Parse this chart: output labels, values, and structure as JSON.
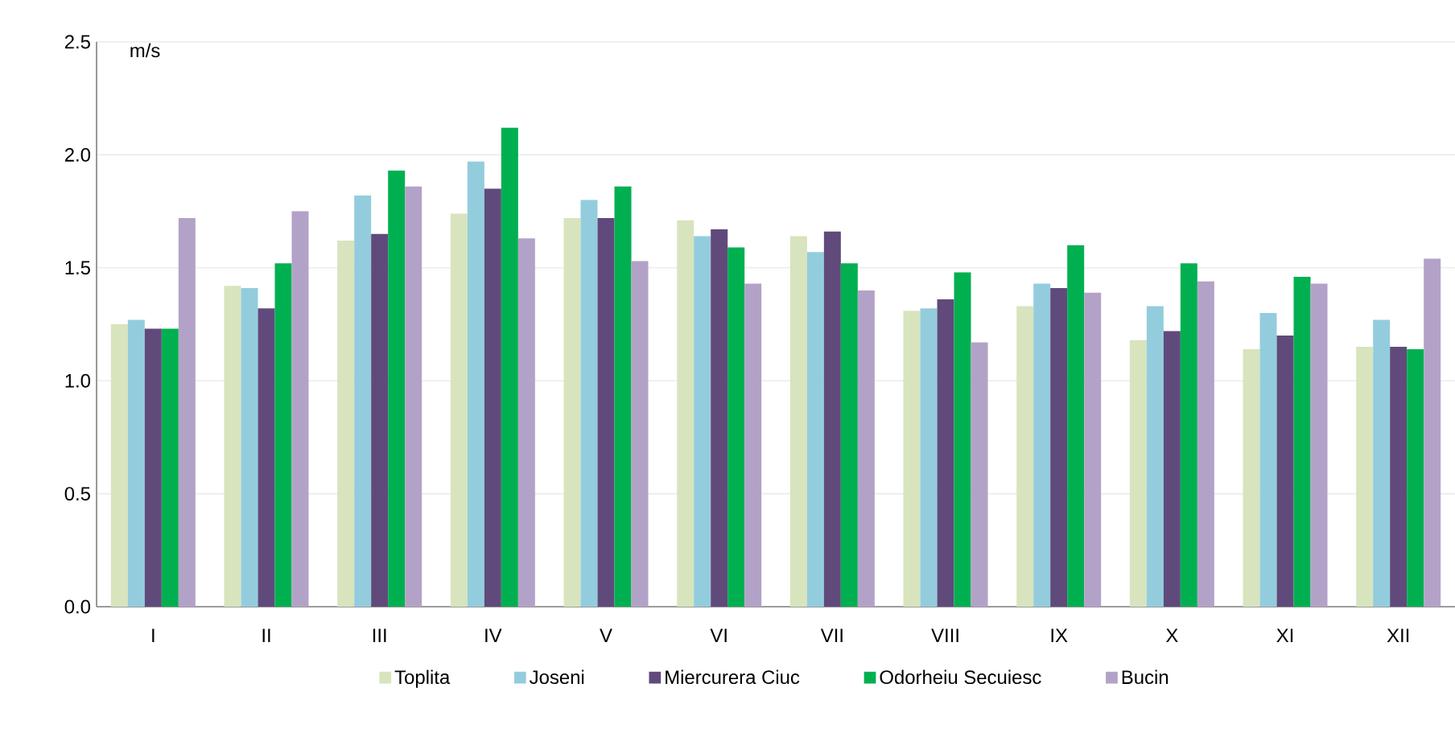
{
  "chart_data": {
    "type": "bar",
    "ylabel": "m/s",
    "categories": [
      "I",
      "II",
      "III",
      "IV",
      "V",
      "VI",
      "VII",
      "VIII",
      "IX",
      "X",
      "XI",
      "XII"
    ],
    "series": [
      {
        "name": "Toplita",
        "color": "#d7e4bd",
        "values": [
          1.25,
          1.42,
          1.62,
          1.74,
          1.72,
          1.71,
          1.64,
          1.31,
          1.33,
          1.18,
          1.14,
          1.15
        ]
      },
      {
        "name": "Joseni",
        "color": "#93cddd",
        "values": [
          1.27,
          1.41,
          1.82,
          1.97,
          1.8,
          1.64,
          1.57,
          1.32,
          1.43,
          1.33,
          1.3,
          1.27
        ]
      },
      {
        "name": "Miercurera Ciuc",
        "color": "#604a7b",
        "values": [
          1.23,
          1.32,
          1.65,
          1.85,
          1.72,
          1.67,
          1.66,
          1.36,
          1.41,
          1.22,
          1.2,
          1.15
        ]
      },
      {
        "name": "Odorheiu Secuiesc",
        "color": "#00b050",
        "values": [
          1.23,
          1.52,
          1.93,
          2.12,
          1.86,
          1.59,
          1.52,
          1.48,
          1.6,
          1.52,
          1.46,
          1.14
        ]
      },
      {
        "name": "Bucin",
        "color": "#b3a2c7",
        "values": [
          1.72,
          1.75,
          1.86,
          1.63,
          1.53,
          1.43,
          1.4,
          1.17,
          1.39,
          1.44,
          1.43,
          1.54
        ]
      }
    ],
    "ylim": [
      0,
      2.5
    ],
    "yticks": [
      {
        "value": 0,
        "label": "0.0"
      },
      {
        "value": 0.5,
        "label": "0.5"
      },
      {
        "value": 1,
        "label": "1.0"
      },
      {
        "value": 1.5,
        "label": "1.5"
      },
      {
        "value": 2,
        "label": "2.0"
      },
      {
        "value": 2.5,
        "label": "2.5"
      }
    ],
    "grid": "y",
    "legend": "bottom"
  }
}
